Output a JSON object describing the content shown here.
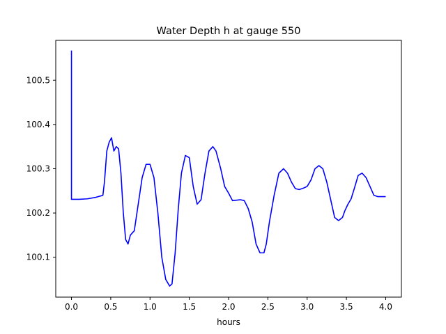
{
  "chart_data": {
    "type": "line",
    "title": "Water Depth h at gauge 550",
    "xlabel": "hours",
    "ylabel": "",
    "xlim": [
      -0.2,
      4.2
    ],
    "ylim": [
      100.01,
      100.59
    ],
    "xticks": [
      0.0,
      0.5,
      1.0,
      1.5,
      2.0,
      2.5,
      3.0,
      3.5,
      4.0
    ],
    "xtick_labels": [
      "0.0",
      "0.5",
      "1.0",
      "1.5",
      "2.0",
      "2.5",
      "3.0",
      "3.5",
      "4.0"
    ],
    "yticks": [
      100.1,
      100.2,
      100.3,
      100.4,
      100.5
    ],
    "ytick_labels": [
      "100.1",
      "100.2",
      "100.3",
      "100.4",
      "100.5"
    ],
    "grid": false,
    "series": [
      {
        "color": "#0000ff",
        "x": [
          0.0,
          0.0,
          0.0,
          0.1,
          0.2,
          0.3,
          0.4,
          0.42,
          0.45,
          0.48,
          0.51,
          0.54,
          0.57,
          0.6,
          0.63,
          0.66,
          0.69,
          0.72,
          0.75,
          0.8,
          0.85,
          0.9,
          0.95,
          1.0,
          1.05,
          1.1,
          1.15,
          1.2,
          1.25,
          1.28,
          1.32,
          1.36,
          1.4,
          1.45,
          1.5,
          1.55,
          1.6,
          1.65,
          1.7,
          1.75,
          1.8,
          1.84,
          1.9,
          1.95,
          2.0,
          2.05,
          2.1,
          2.15,
          2.2,
          2.25,
          2.3,
          2.35,
          2.4,
          2.45,
          2.48,
          2.52,
          2.58,
          2.64,
          2.7,
          2.75,
          2.8,
          2.85,
          2.9,
          2.95,
          3.0,
          3.05,
          3.1,
          3.15,
          3.2,
          3.25,
          3.3,
          3.35,
          3.4,
          3.45,
          3.48,
          3.52,
          3.56,
          3.6,
          3.65,
          3.7,
          3.75,
          3.8,
          3.85,
          3.9,
          3.95,
          4.0
        ],
        "y": [
          100.567,
          100.231,
          100.231,
          100.231,
          100.232,
          100.235,
          100.24,
          100.27,
          100.34,
          100.36,
          100.37,
          100.34,
          100.35,
          100.345,
          100.29,
          100.2,
          100.14,
          100.13,
          100.15,
          100.16,
          100.22,
          100.28,
          100.31,
          100.31,
          100.28,
          100.2,
          100.1,
          100.05,
          100.035,
          100.04,
          100.11,
          100.21,
          100.29,
          100.33,
          100.325,
          100.26,
          100.22,
          100.23,
          100.29,
          100.34,
          100.35,
          100.34,
          100.3,
          100.26,
          100.245,
          100.228,
          100.229,
          100.23,
          100.228,
          100.21,
          100.18,
          100.13,
          100.11,
          100.11,
          100.13,
          100.18,
          100.24,
          100.29,
          100.3,
          100.29,
          100.27,
          100.255,
          100.253,
          100.256,
          100.26,
          100.275,
          100.3,
          100.307,
          100.3,
          100.27,
          100.23,
          100.19,
          100.183,
          100.19,
          100.205,
          100.22,
          100.232,
          100.255,
          100.285,
          100.29,
          100.28,
          100.26,
          100.24,
          100.237,
          100.237,
          100.237
        ]
      }
    ]
  }
}
